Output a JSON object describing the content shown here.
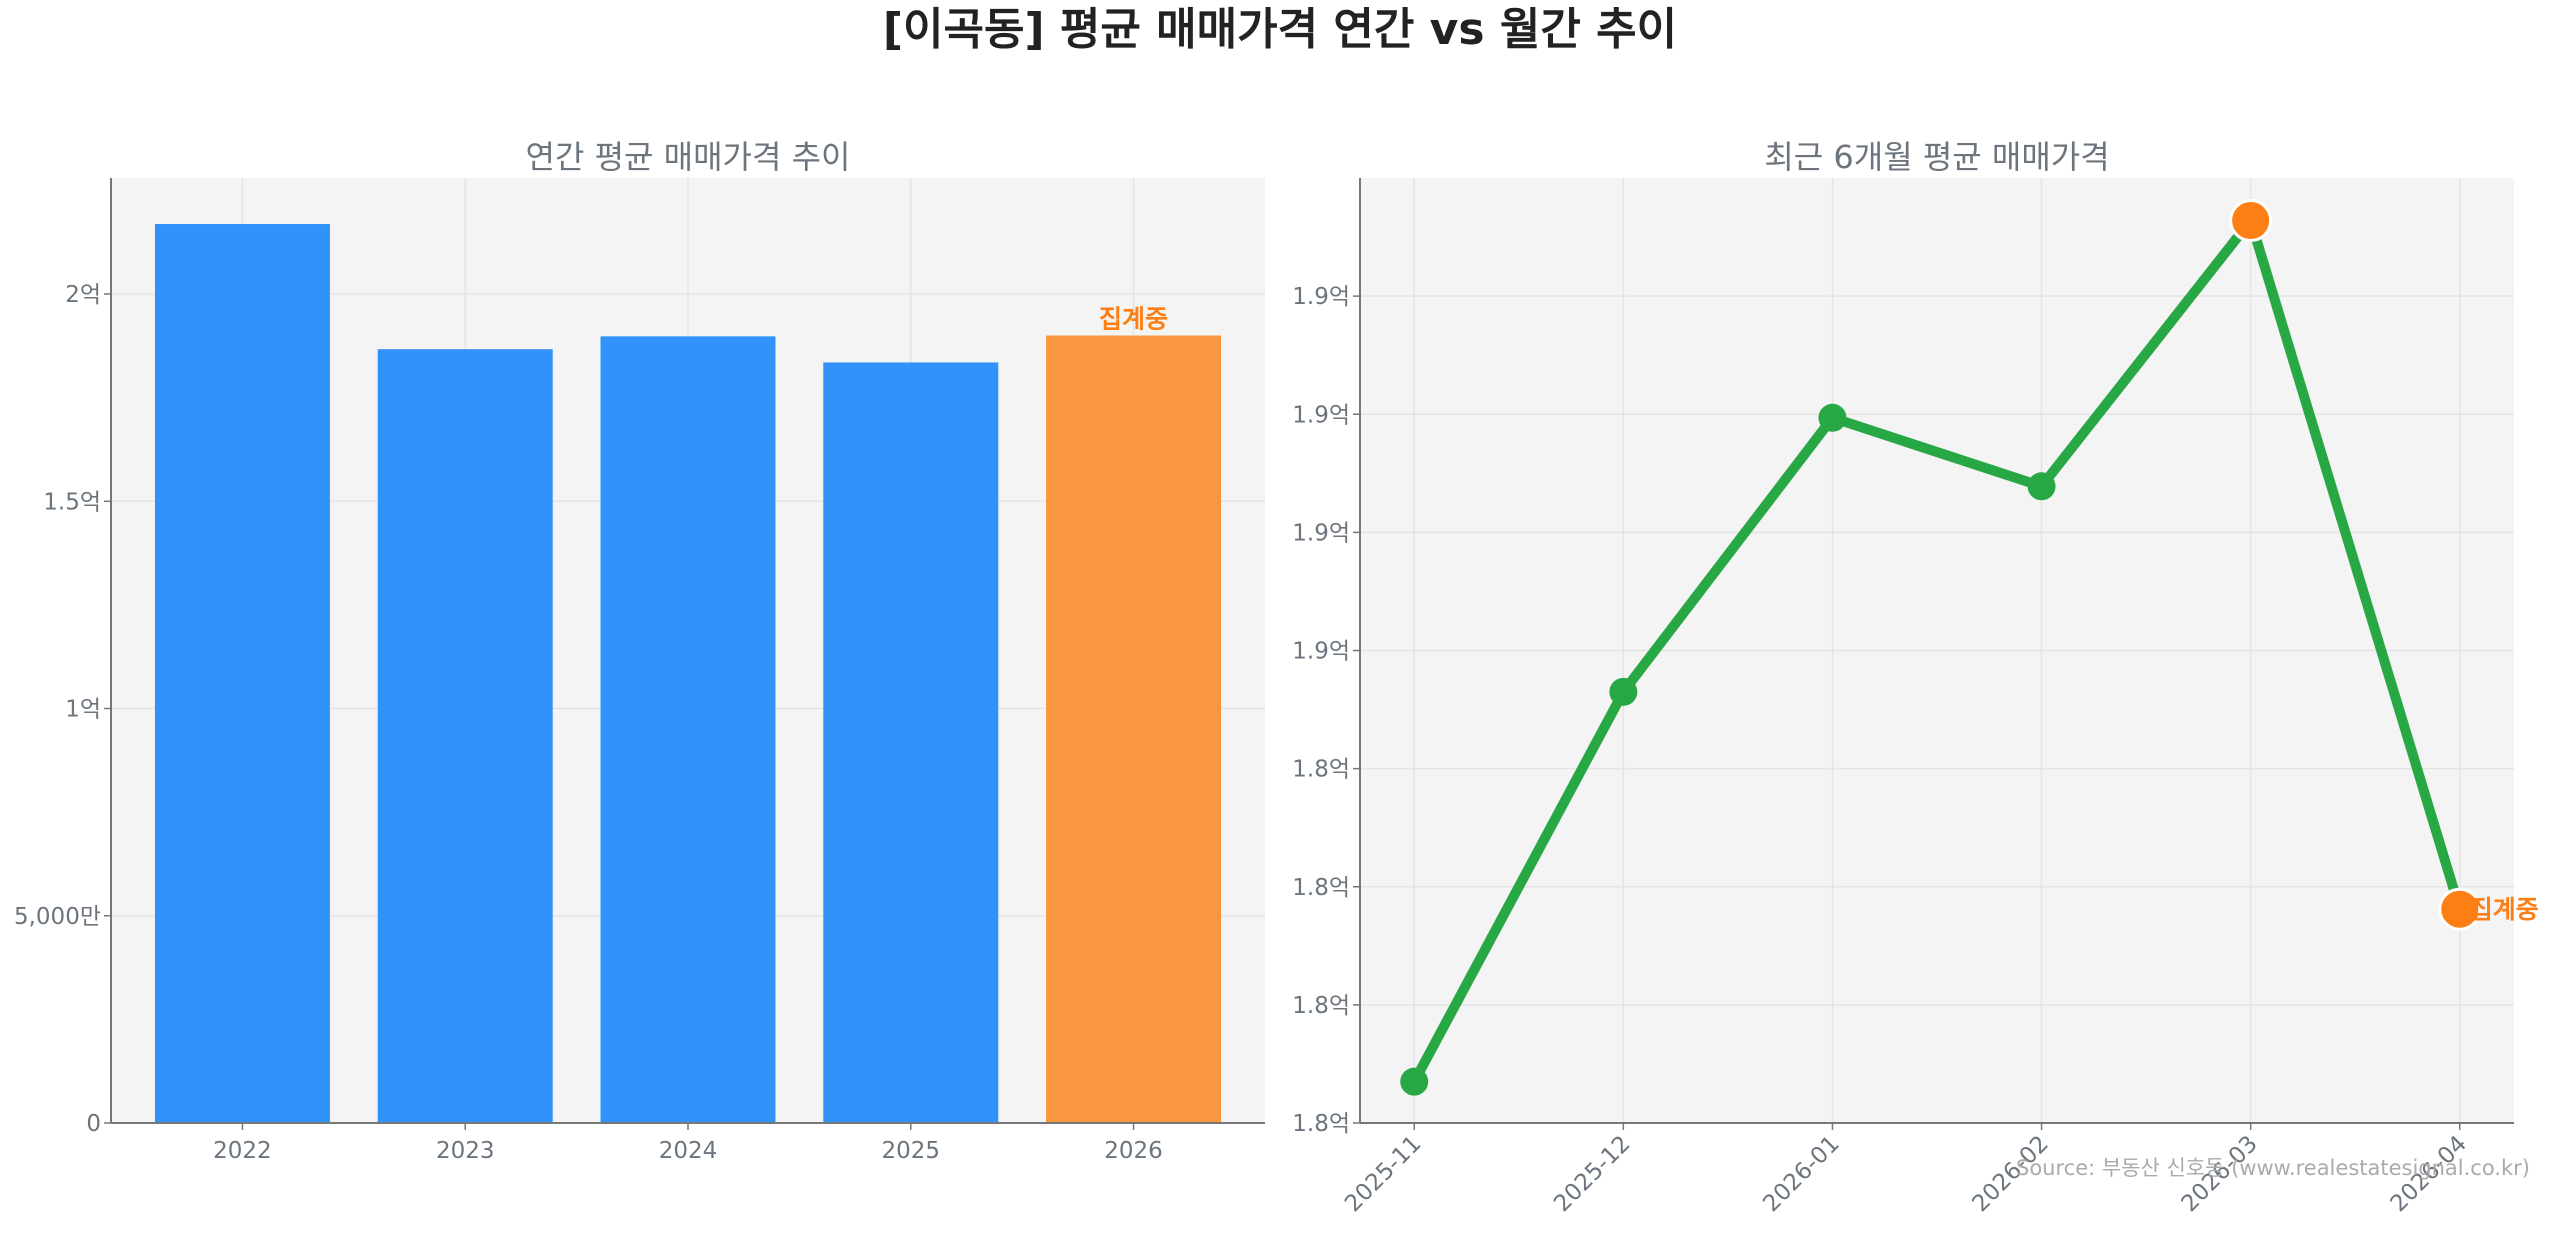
{
  "title": "[이곡동] 평균 매매가격 연간 vs 월간 추이",
  "source": "Source: 부동산 신호등 (www.realestatesignal.co.kr)",
  "colors": {
    "bar": "#3193FA",
    "bar_pending": "#F99640",
    "line": "#28A745",
    "pending_marker": "#FD7E14",
    "pending_text": "#FD7E14",
    "axis_text": "#6C757D",
    "plot_bg": "#F4F4F4"
  },
  "chart_data": [
    {
      "type": "bar",
      "title": "연간 평균 매매가격 추이",
      "categories": [
        "2022",
        "2023",
        "2024",
        "2025",
        "2026"
      ],
      "values": [
        216900000,
        186700000,
        189800000,
        183500000,
        190000000
      ],
      "pending_index": 4,
      "pending_label": "집계중",
      "ylim": [
        0,
        228000000
      ],
      "yticks": [
        0,
        50000000,
        100000000,
        150000000,
        200000000
      ],
      "ytick_labels": [
        "0",
        "5,000만",
        "1억",
        "1.5억",
        "2억"
      ],
      "grid": true
    },
    {
      "type": "line",
      "title": "최근 6개월 평균 매매가격",
      "categories": [
        "2025-11",
        "2025-12",
        "2026-01",
        "2026-02",
        "2026-03",
        "2026-04"
      ],
      "values": [
        181350000,
        184650000,
        186970000,
        186390000,
        188640000,
        182810000
      ],
      "highlight_indices": [
        4,
        5
      ],
      "pending_index": 5,
      "pending_label": "집계중",
      "ylim": [
        181000000,
        189000000
      ],
      "yticks": [
        181000000,
        182000000,
        183000000,
        184000000,
        185000000,
        186000000,
        187000000,
        188000000
      ],
      "ytick_labels": [
        "1.8억",
        "1.8억",
        "1.8억",
        "1.8억",
        "1.9억",
        "1.9억",
        "1.9억",
        "1.9억"
      ],
      "grid": true
    }
  ]
}
